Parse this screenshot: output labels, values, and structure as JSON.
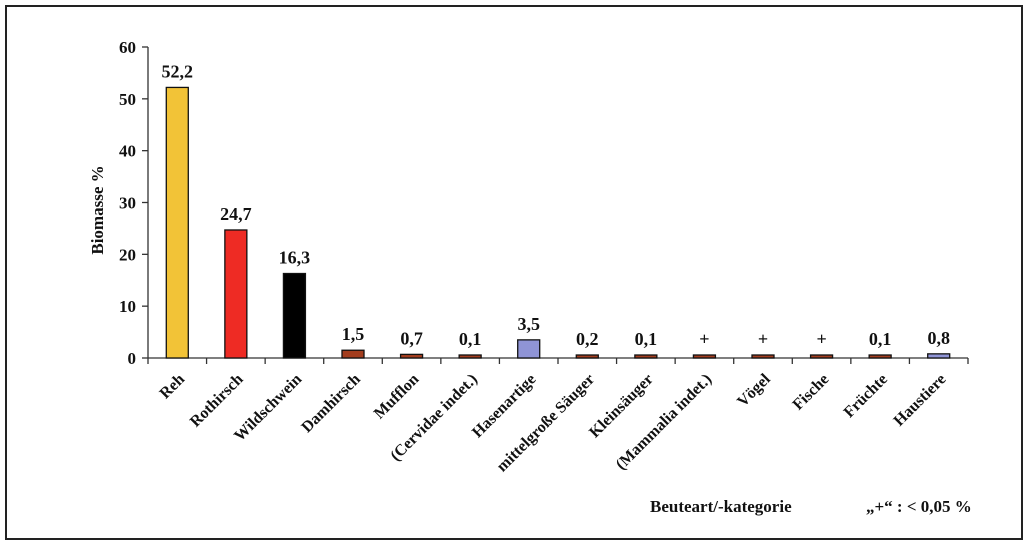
{
  "chart_data": {
    "type": "bar",
    "ylabel": "Biomasse %",
    "xlabel": "Beuteart/-kategorie",
    "note": "„+“ : < 0,05 %",
    "ylim": [
      0,
      60
    ],
    "yticks": [
      "0",
      "10",
      "20",
      "30",
      "40",
      "50",
      "60"
    ],
    "grid": false,
    "legend": "none",
    "categories": [
      "Reh",
      "Rothirsch",
      "Wildschwein",
      "Damhirsch",
      "Mufflon",
      "(Cervidae indet.)",
      "Hasenartige",
      "mittelgroße Säuger",
      "Kleinsäuger",
      "(Mammalia indet.)",
      "Vögel",
      "Fische",
      "Früchte",
      "Haustiere"
    ],
    "values": [
      52.2,
      24.7,
      16.3,
      1.5,
      0.7,
      0.1,
      3.5,
      0.2,
      0.1,
      0.01,
      0.01,
      0.01,
      0.1,
      0.8
    ],
    "labels": [
      "52,2",
      "24,7",
      "16,3",
      "1,5",
      "0,7",
      "0,1",
      "3,5",
      "0,2",
      "0,1",
      "+",
      "+",
      "+",
      "0,1",
      "0,8"
    ],
    "colors": [
      "#f2c337",
      "#ee2b24",
      "#000000",
      "#a33d1e",
      "#a33d1e",
      "#a33d1e",
      "#8f94d6",
      "#a33d1e",
      "#a33d1e",
      "#a33d1e",
      "#a33d1e",
      "#a33d1e",
      "#a33d1e",
      "#8f94d6"
    ]
  }
}
